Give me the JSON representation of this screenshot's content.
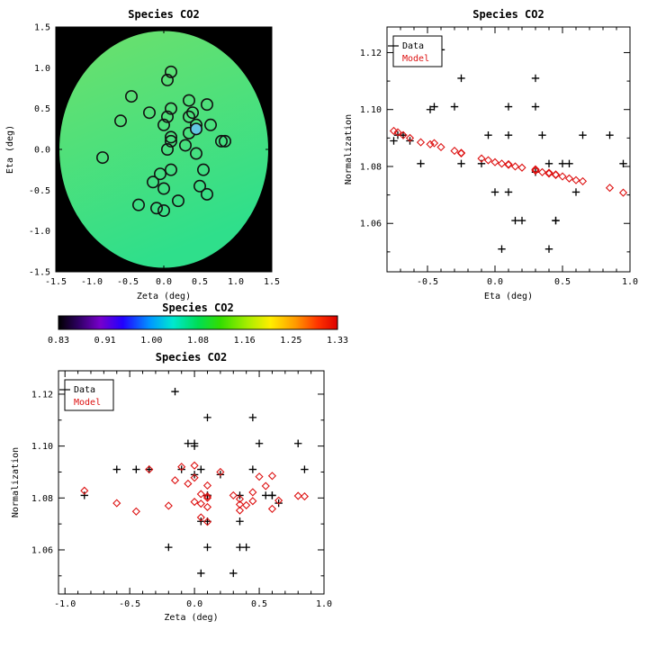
{
  "figure": {
    "background": "#ffffff",
    "colors": {
      "axis": "#000000",
      "data_marker": "#000000",
      "model_marker": "#dd1111",
      "map_background": "#000000",
      "disk_top": "#6ee06b",
      "disk_bottom": "#2fdf8b",
      "highlight_fill": "#62c6e2"
    }
  },
  "chart_data": [
    {
      "id": "map",
      "type": "scatter",
      "title": "Species CO2",
      "xlabel": "Zeta (deg)",
      "ylabel": "Eta (deg)",
      "xlim": [
        -1.5,
        1.5
      ],
      "ylim": [
        -1.5,
        1.5
      ],
      "xticks": [
        -1.5,
        -1.0,
        -0.5,
        0.0,
        0.5,
        1.0,
        1.5
      ],
      "xtick_labels": [
        "-1.5",
        "-1.0",
        "-0.5",
        "0.0",
        "0.5",
        "1.0",
        "1.5"
      ],
      "yticks": [
        -1.5,
        -1.0,
        -0.5,
        0.0,
        0.5,
        1.0,
        1.5
      ],
      "ytick_labels": [
        "-1.5",
        "-1.0",
        "-0.5",
        "0.0",
        "0.5",
        "1.0",
        "1.5"
      ],
      "background_note": "black field with green circular model disk of radius 1.45 deg",
      "disk_radius_deg": 1.45,
      "series": [
        {
          "name": "source-apertures",
          "marker": "circle",
          "color": "#111111",
          "x": [
            -0.85,
            -0.6,
            -0.45,
            -0.35,
            -0.2,
            -0.15,
            -0.1,
            -0.05,
            0.0,
            0.0,
            0.0,
            0.05,
            0.05,
            0.05,
            0.1,
            0.1,
            0.1,
            0.1,
            0.1,
            0.2,
            0.3,
            0.35,
            0.35,
            0.35,
            0.4,
            0.45,
            0.45,
            0.5,
            0.55,
            0.6,
            0.6,
            0.65,
            0.8,
            0.85
          ],
          "y": [
            -0.1,
            0.35,
            0.65,
            -0.68,
            0.45,
            -0.4,
            -0.72,
            -0.3,
            -0.75,
            -0.48,
            0.3,
            0.0,
            0.4,
            0.85,
            -0.25,
            0.1,
            0.15,
            0.5,
            0.95,
            -0.63,
            0.05,
            0.2,
            0.4,
            0.6,
            0.45,
            -0.05,
            0.3,
            -0.45,
            -0.25,
            -0.55,
            0.55,
            0.3,
            0.1,
            0.1
          ]
        },
        {
          "name": "highlighted-aperture",
          "marker": "circle",
          "color": "#111111",
          "fill": "#62c6e2",
          "x": [
            0.45
          ],
          "y": [
            0.25
          ]
        }
      ]
    },
    {
      "id": "eta-scatter",
      "type": "scatter",
      "title": "Species CO2",
      "xlabel": "Eta (deg)",
      "ylabel": "Normalization",
      "xlim": [
        -0.8,
        1.0
      ],
      "ylim": [
        1.043,
        1.129
      ],
      "xticks": [
        -0.5,
        0.0,
        0.5,
        1.0
      ],
      "xtick_labels": [
        "-0.5",
        "0.0",
        "0.5",
        "1.0"
      ],
      "yticks": [
        1.06,
        1.08,
        1.1,
        1.12
      ],
      "ytick_labels": [
        "1.06",
        "1.08",
        "1.10",
        "1.12"
      ],
      "legend": {
        "position": "top-left",
        "entries": [
          {
            "label": "Data",
            "color": "#000000"
          },
          {
            "label": "Model",
            "color": "#dd1111"
          }
        ]
      },
      "series": [
        {
          "name": "Data",
          "marker": "plus",
          "color": "#000000",
          "x": [
            -0.1,
            0.35,
            0.65,
            -0.68,
            0.45,
            -0.4,
            -0.72,
            -0.3,
            -0.75,
            -0.48,
            0.3,
            0.0,
            0.4,
            0.85,
            -0.25,
            0.1,
            0.15,
            0.5,
            0.95,
            -0.63,
            0.05,
            0.2,
            0.4,
            0.6,
            0.45,
            -0.05,
            0.3,
            -0.45,
            -0.25,
            -0.55,
            0.55,
            0.3,
            0.1,
            0.1
          ],
          "y": [
            1.081,
            1.091,
            1.091,
            1.091,
            1.061,
            1.121,
            1.091,
            1.101,
            1.089,
            1.1,
            1.101,
            1.071,
            1.051,
            1.091,
            1.111,
            1.071,
            1.061,
            1.081,
            1.081,
            1.089,
            1.051,
            1.061,
            1.081,
            1.071,
            1.061,
            1.091,
            1.111,
            1.101,
            1.081,
            1.081,
            1.081,
            1.078,
            1.101,
            1.091
          ]
        },
        {
          "name": "Model",
          "marker": "diamond",
          "color": "#dd1111",
          "x": [
            -0.1,
            0.35,
            0.65,
            -0.68,
            0.45,
            -0.4,
            -0.72,
            -0.3,
            -0.75,
            -0.48,
            0.3,
            0.0,
            0.4,
            0.85,
            -0.25,
            0.1,
            0.15,
            0.5,
            0.95,
            -0.63,
            0.05,
            0.2,
            0.4,
            0.6,
            0.45,
            -0.05,
            0.3,
            -0.45,
            -0.25,
            -0.55,
            0.55,
            0.3,
            0.1,
            0.1
          ],
          "y": [
            1.0828,
            1.078,
            1.0748,
            1.091,
            1.077,
            1.0868,
            1.092,
            1.0855,
            1.0925,
            1.0878,
            1.0785,
            1.0815,
            1.0778,
            1.0725,
            1.0848,
            1.0806,
            1.08,
            1.0765,
            1.0708,
            1.09,
            1.081,
            1.0796,
            1.0775,
            1.0752,
            1.0772,
            1.0822,
            1.0788,
            1.0882,
            1.0846,
            1.0885,
            1.0758,
            1.079,
            1.0808,
            1.0806
          ]
        }
      ]
    },
    {
      "id": "zeta-scatter",
      "type": "scatter",
      "title": "Species CO2",
      "xlabel": "Zeta (deg)",
      "ylabel": "Normalization",
      "xlim": [
        -1.05,
        1.0
      ],
      "ylim": [
        1.043,
        1.129
      ],
      "xticks": [
        -1.0,
        -0.5,
        0.0,
        0.5,
        1.0
      ],
      "xtick_labels": [
        "-1.0",
        "-0.5",
        "0.0",
        "0.5",
        "1.0"
      ],
      "yticks": [
        1.06,
        1.08,
        1.1,
        1.12
      ],
      "ytick_labels": [
        "1.06",
        "1.08",
        "1.10",
        "1.12"
      ],
      "legend": {
        "position": "top-left",
        "entries": [
          {
            "label": "Data",
            "color": "#000000"
          },
          {
            "label": "Model",
            "color": "#dd1111"
          }
        ]
      },
      "series": [
        {
          "name": "Data",
          "marker": "plus",
          "color": "#000000",
          "x": [
            -0.85,
            -0.6,
            -0.45,
            -0.35,
            -0.2,
            -0.15,
            -0.1,
            -0.05,
            0.0,
            0.0,
            0.0,
            0.05,
            0.05,
            0.05,
            0.1,
            0.1,
            0.1,
            0.1,
            0.1,
            0.2,
            0.3,
            0.35,
            0.35,
            0.35,
            0.4,
            0.45,
            0.45,
            0.5,
            0.55,
            0.6,
            0.6,
            0.65,
            0.8,
            0.85
          ],
          "y": [
            1.081,
            1.091,
            1.091,
            1.091,
            1.061,
            1.121,
            1.091,
            1.101,
            1.089,
            1.1,
            1.101,
            1.071,
            1.051,
            1.091,
            1.111,
            1.071,
            1.061,
            1.081,
            1.081,
            1.089,
            1.051,
            1.061,
            1.081,
            1.071,
            1.061,
            1.091,
            1.111,
            1.101,
            1.081,
            1.081,
            1.081,
            1.078,
            1.101,
            1.091
          ]
        },
        {
          "name": "Model",
          "marker": "diamond",
          "color": "#dd1111",
          "x": [
            -0.85,
            -0.6,
            -0.45,
            -0.35,
            -0.2,
            -0.15,
            -0.1,
            -0.05,
            0.0,
            0.0,
            0.0,
            0.05,
            0.05,
            0.05,
            0.1,
            0.1,
            0.1,
            0.1,
            0.1,
            0.2,
            0.3,
            0.35,
            0.35,
            0.35,
            0.4,
            0.45,
            0.45,
            0.5,
            0.55,
            0.6,
            0.6,
            0.65,
            0.8,
            0.85
          ],
          "y": [
            1.0828,
            1.078,
            1.0748,
            1.091,
            1.077,
            1.0868,
            1.092,
            1.0855,
            1.0925,
            1.0878,
            1.0785,
            1.0815,
            1.0778,
            1.0725,
            1.0848,
            1.0806,
            1.08,
            1.0765,
            1.0708,
            1.09,
            1.081,
            1.0796,
            1.0775,
            1.0752,
            1.0772,
            1.0822,
            1.0788,
            1.0882,
            1.0846,
            1.0885,
            1.0758,
            1.079,
            1.0808,
            1.0806
          ]
        }
      ]
    },
    {
      "id": "colorbar",
      "type": "colorbar",
      "title": "Species CO2",
      "tick_labels": [
        "0.83",
        "0.91",
        "1.00",
        "1.08",
        "1.16",
        "1.25",
        "1.33"
      ],
      "range": [
        0.83,
        1.33
      ],
      "gradient": [
        {
          "pos": 0.0,
          "color": "#000000"
        },
        {
          "pos": 0.07,
          "color": "#2d0060"
        },
        {
          "pos": 0.15,
          "color": "#7700cc"
        },
        {
          "pos": 0.23,
          "color": "#2200ff"
        },
        {
          "pos": 0.33,
          "color": "#0099ff"
        },
        {
          "pos": 0.41,
          "color": "#00e8d0"
        },
        {
          "pos": 0.5,
          "color": "#00dd55"
        },
        {
          "pos": 0.58,
          "color": "#33dd00"
        },
        {
          "pos": 0.68,
          "color": "#aaee00"
        },
        {
          "pos": 0.76,
          "color": "#ffee00"
        },
        {
          "pos": 0.85,
          "color": "#ff9900"
        },
        {
          "pos": 0.93,
          "color": "#ff3300"
        },
        {
          "pos": 1.0,
          "color": "#dd0000"
        }
      ]
    }
  ]
}
